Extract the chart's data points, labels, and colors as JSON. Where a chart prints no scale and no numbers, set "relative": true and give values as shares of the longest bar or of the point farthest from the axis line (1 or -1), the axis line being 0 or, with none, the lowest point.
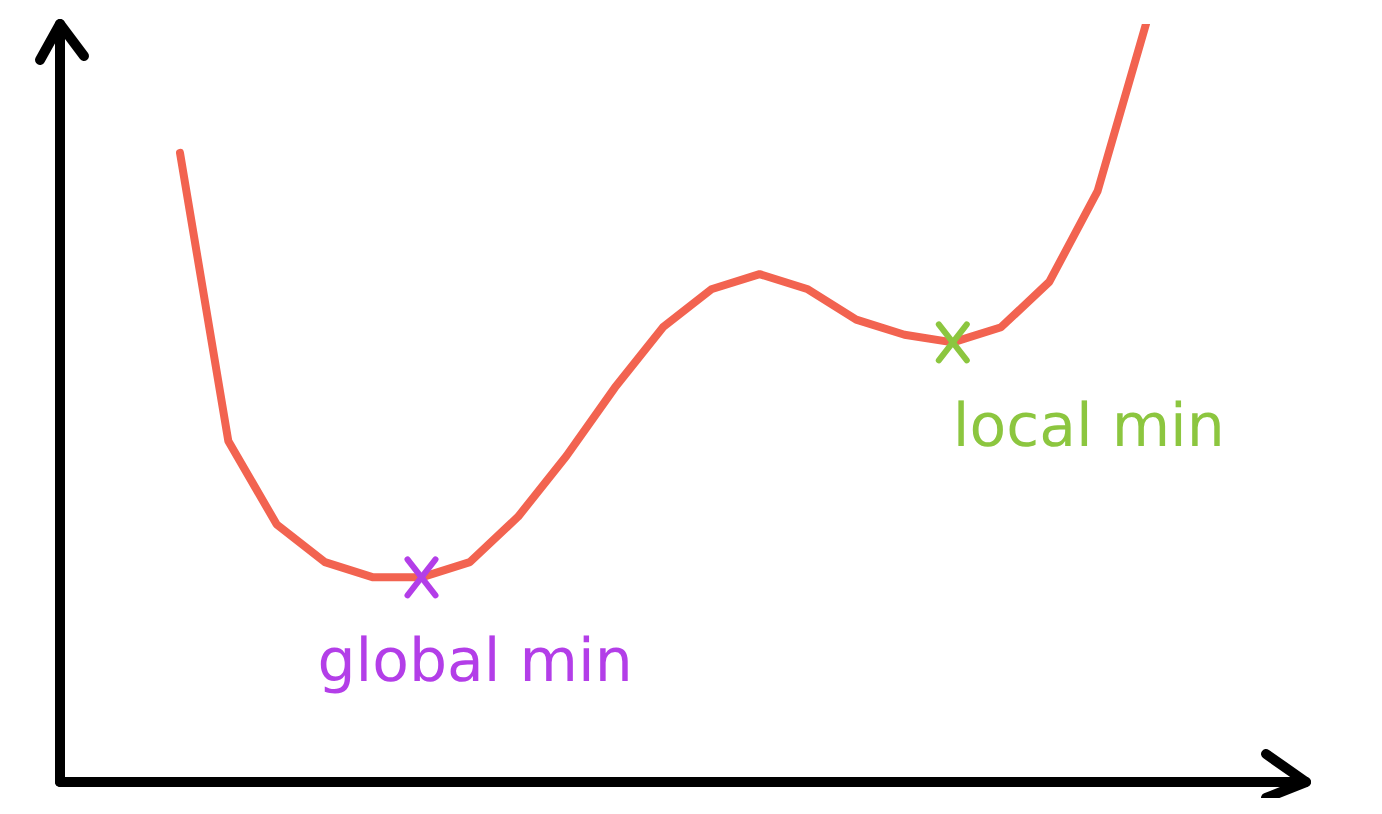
{
  "chart_data": {
    "type": "line",
    "relative": true,
    "categories": [
      null,
      null,
      null,
      null,
      null,
      null,
      null,
      null,
      null,
      null,
      null,
      null,
      null,
      null,
      null,
      null,
      null,
      null,
      null,
      null,
      null
    ],
    "series": [
      {
        "color": "#f26350",
        "values": [
          0.83,
          0.45,
          0.34,
          0.29,
          0.27,
          0.27,
          0.29,
          0.35,
          0.43,
          0.52,
          0.6,
          0.65,
          0.67,
          0.65,
          0.61,
          0.59,
          0.58,
          0.6,
          0.66,
          0.78,
          1
        ]
      }
    ],
    "annotations": [
      "global min",
      "local min"
    ],
    "legend": false,
    "grid": false,
    "marker": "none",
    "line_style": "solid"
  }
}
